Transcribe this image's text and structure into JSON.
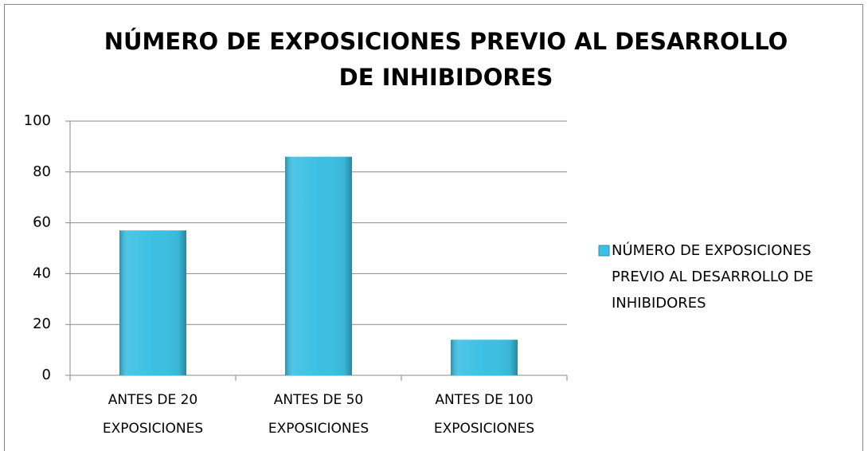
{
  "chart_data": {
    "type": "bar",
    "title": "NÚMERO DE EXPOSICIONES PREVIO AL DESARROLLO DE INHIBIDORES",
    "categories": [
      "ANTES DE 20 EXPOSICIONES",
      "ANTES DE 50 EXPOSICIONES",
      "ANTES DE 100 EXPOSICIONES"
    ],
    "series": [
      {
        "name": "NÚMERO DE EXPOSICIONES PREVIO AL DESARROLLO DE INHIBIDORES",
        "color": "#3cc0e2",
        "values": [
          57,
          86,
          14
        ]
      }
    ],
    "ylim": [
      0,
      100
    ],
    "yticks": [
      0,
      20,
      40,
      60,
      80,
      100
    ],
    "grid": true,
    "legend": "right"
  }
}
